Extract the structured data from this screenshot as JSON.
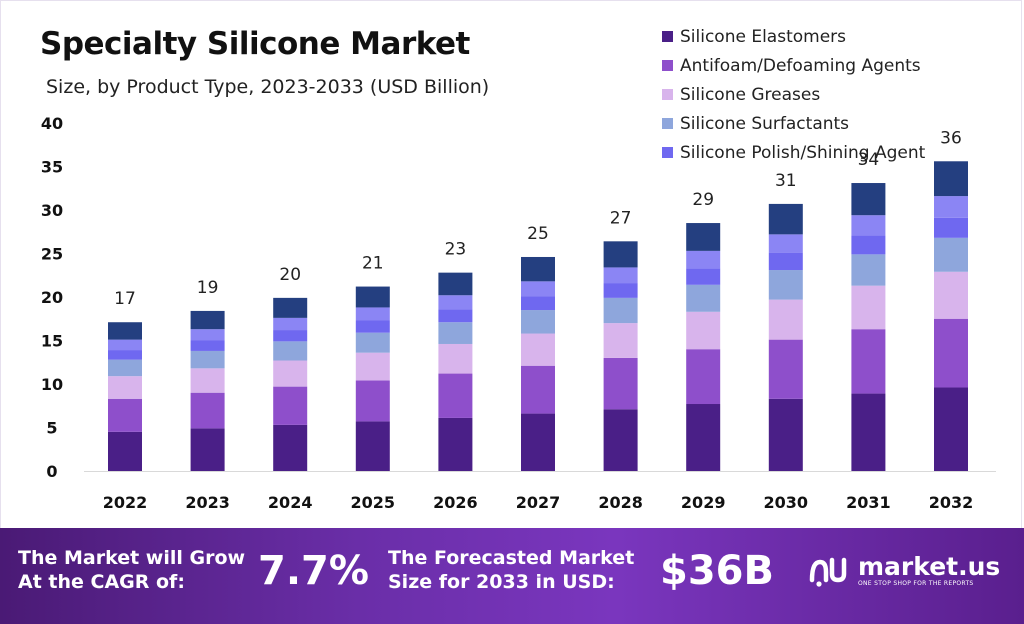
{
  "header": {
    "title": "Specialty Silicone Market",
    "subtitle": "Size, by Product Type, 2023-2033 (USD Billion)"
  },
  "chart_data": {
    "type": "bar",
    "stacked": true,
    "categories": [
      "2022",
      "2023",
      "2024",
      "2025",
      "2026",
      "2027",
      "2028",
      "2029",
      "2030",
      "2031",
      "2032"
    ],
    "totals": [
      "17",
      "19",
      "20",
      "21",
      "23",
      "25",
      "27",
      "29",
      "31",
      "34",
      "36"
    ],
    "series": [
      {
        "name": "Silicone Elastomers",
        "color": "#4a1f87",
        "values": [
          4.5,
          4.9,
          5.3,
          5.7,
          6.1,
          6.6,
          7.1,
          7.7,
          8.3,
          8.9,
          9.6
        ]
      },
      {
        "name": "Antifoam/Defoaming Agents",
        "color": "#8e4fcb",
        "values": [
          3.8,
          4.1,
          4.4,
          4.7,
          5.1,
          5.5,
          5.9,
          6.3,
          6.8,
          7.4,
          7.9
        ]
      },
      {
        "name": "Silicone Greases",
        "color": "#d8b4ec",
        "values": [
          2.6,
          2.8,
          3.0,
          3.2,
          3.4,
          3.7,
          4.0,
          4.3,
          4.6,
          5.0,
          5.4
        ]
      },
      {
        "name": "Silicone Surfactants",
        "color": "#8ea6dc",
        "values": [
          1.9,
          2.0,
          2.2,
          2.3,
          2.5,
          2.7,
          2.9,
          3.1,
          3.4,
          3.6,
          3.9
        ]
      },
      {
        "name": "Silicone Polish/Shining Agent",
        "color": "#6f68f0",
        "values": [
          1.1,
          1.2,
          1.3,
          1.4,
          1.5,
          1.6,
          1.7,
          1.9,
          2.0,
          2.2,
          2.3
        ]
      },
      {
        "name": "",
        "color": "#8b85f4",
        "values": [
          1.2,
          1.3,
          1.4,
          1.5,
          1.6,
          1.7,
          1.8,
          2.0,
          2.1,
          2.3,
          2.5
        ]
      },
      {
        "name": "",
        "color": "#243f80",
        "values": [
          2.0,
          2.1,
          2.3,
          2.4,
          2.6,
          2.8,
          3.0,
          3.2,
          3.5,
          3.7,
          4.0
        ]
      }
    ],
    "ylim": [
      0,
      40
    ],
    "yticks": [
      "0",
      "5",
      "10",
      "15",
      "20",
      "25",
      "30",
      "35",
      "40"
    ],
    "grid": false,
    "legend": "top-right"
  },
  "footer": {
    "cagr_label_1": "The Market will Grow",
    "cagr_label_2": "At the CAGR of:",
    "cagr_value": "7.7%",
    "forecast_label_1": "The Forecasted Market",
    "forecast_label_2": "Size for 2033 in USD:",
    "forecast_value": "$36B",
    "brand_name": "market.us",
    "brand_tagline": "ONE STOP SHOP FOR THE REPORTS"
  }
}
